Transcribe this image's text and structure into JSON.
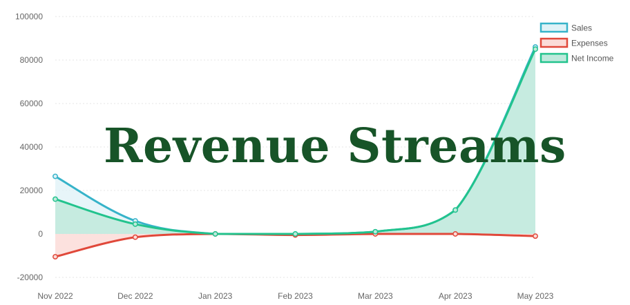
{
  "chart_data": {
    "type": "area",
    "title": "",
    "xlabel": "",
    "ylabel": "",
    "categories": [
      "Nov 2022",
      "Dec 2022",
      "Jan 2023",
      "Feb 2023",
      "Mar 2023",
      "Apr 2023",
      "May 2023"
    ],
    "ylim": [
      -20000,
      100000
    ],
    "yticks": [
      -20000,
      0,
      20000,
      40000,
      60000,
      80000,
      100000
    ],
    "ytick_labels": [
      "-20000",
      "0",
      "20000",
      "40000",
      "60000",
      "80000",
      "100000"
    ],
    "grid": true,
    "legend_position": "top-right",
    "series": [
      {
        "name": "Sales",
        "values": [
          26500,
          6000,
          0,
          0,
          1000,
          11000,
          86000
        ],
        "line_color": "#36b3c9",
        "fill_color": "#dff2f7"
      },
      {
        "name": "Expenses",
        "values": [
          -10500,
          -1500,
          0,
          -500,
          0,
          0,
          -1000
        ],
        "line_color": "#e0483a",
        "fill_color": "#fbdcd8"
      },
      {
        "name": "Net Income",
        "values": [
          16000,
          4500,
          0,
          0,
          1000,
          11000,
          85000
        ],
        "line_color": "#22c38d",
        "fill_color": "#bfe9dc"
      }
    ]
  },
  "overlay": {
    "title_text": "Revenue Streams",
    "title_color": "#175428"
  }
}
